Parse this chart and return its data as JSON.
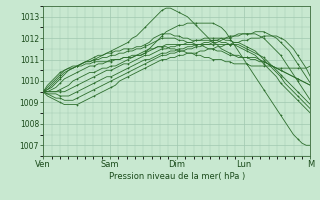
{
  "bg_color": "#c8e8d0",
  "grid_color": "#a0c8b0",
  "line_color": "#2d6e2d",
  "xlabel": "Pression niveau de la mer( hPa )",
  "ylim": [
    1006.5,
    1013.5
  ],
  "yticks": [
    1007,
    1008,
    1009,
    1010,
    1011,
    1012,
    1013
  ],
  "x_day_labels": [
    "Ven",
    "Sam",
    "Dim",
    "Lun",
    "M"
  ],
  "x_day_positions": [
    0,
    48,
    96,
    144,
    192
  ],
  "total_hours": 192,
  "series": [
    [
      1009.5,
      1009.8,
      1010.0,
      1010.2,
      1010.4,
      1010.5,
      1010.6,
      1010.6,
      1010.7,
      1010.7,
      1010.8,
      1010.8,
      1010.9,
      1010.9,
      1010.9,
      1010.9,
      1011.0,
      1011.0,
      1011.0,
      1011.1,
      1011.1,
      1011.1,
      1011.2,
      1011.2,
      1011.3,
      1011.5,
      1011.7,
      1011.9,
      1012.1,
      1012.3,
      1012.4,
      1012.5,
      1012.6,
      1012.6,
      1012.7,
      1012.7,
      1012.7,
      1012.7,
      1012.7,
      1012.7,
      1012.7,
      1012.6,
      1012.5,
      1012.3,
      1012.0,
      1011.7,
      1011.4,
      1011.1,
      1010.8,
      1010.5,
      1010.2,
      1009.9,
      1009.6,
      1009.3,
      1009.0,
      1008.7,
      1008.4,
      1008.1,
      1007.8,
      1007.5,
      1007.3,
      1007.1,
      1007.0,
      1007.0
    ],
    [
      1009.5,
      1009.7,
      1009.9,
      1010.1,
      1010.3,
      1010.5,
      1010.6,
      1010.7,
      1010.7,
      1010.8,
      1010.9,
      1010.9,
      1011.0,
      1011.1,
      1011.2,
      1011.3,
      1011.4,
      1011.5,
      1011.6,
      1011.7,
      1011.8,
      1012.0,
      1012.1,
      1012.3,
      1012.5,
      1012.7,
      1012.9,
      1013.1,
      1013.3,
      1013.4,
      1013.4,
      1013.3,
      1013.2,
      1013.1,
      1013.0,
      1012.8,
      1012.6,
      1012.4,
      1012.2,
      1012.0,
      1011.8,
      1011.7,
      1011.5,
      1011.4,
      1011.3,
      1011.2,
      1011.1,
      1011.1,
      1011.1,
      1011.0,
      1011.0,
      1010.9,
      1010.9,
      1010.8,
      1010.7,
      1010.6,
      1010.5,
      1010.4,
      1010.3,
      1010.2,
      1010.1,
      1010.0,
      1009.9,
      1009.8
    ],
    [
      1009.5,
      1009.6,
      1009.8,
      1010.0,
      1010.2,
      1010.4,
      1010.5,
      1010.6,
      1010.7,
      1010.8,
      1010.9,
      1011.0,
      1011.1,
      1011.2,
      1011.2,
      1011.3,
      1011.3,
      1011.4,
      1011.4,
      1011.5,
      1011.5,
      1011.5,
      1011.6,
      1011.6,
      1011.7,
      1011.8,
      1012.0,
      1012.1,
      1012.2,
      1012.2,
      1012.2,
      1012.1,
      1012.1,
      1012.0,
      1012.0,
      1011.9,
      1011.9,
      1011.9,
      1011.9,
      1011.9,
      1011.9,
      1011.9,
      1011.8,
      1011.8,
      1011.7,
      1011.7,
      1011.6,
      1011.5,
      1011.4,
      1011.3,
      1011.2,
      1011.0,
      1010.8,
      1010.6,
      1010.4,
      1010.2,
      1009.9,
      1009.7,
      1009.5,
      1009.3,
      1009.1,
      1008.9,
      1008.7,
      1008.5
    ],
    [
      1009.5,
      1009.6,
      1009.7,
      1009.9,
      1010.1,
      1010.3,
      1010.5,
      1010.6,
      1010.7,
      1010.8,
      1010.9,
      1010.9,
      1011.0,
      1011.0,
      1011.1,
      1011.1,
      1011.2,
      1011.2,
      1011.3,
      1011.3,
      1011.4,
      1011.4,
      1011.5,
      1011.5,
      1011.6,
      1011.7,
      1011.8,
      1011.9,
      1012.0,
      1012.0,
      1012.0,
      1012.0,
      1011.9,
      1011.9,
      1011.8,
      1011.8,
      1011.7,
      1011.7,
      1011.6,
      1011.5,
      1011.5,
      1011.4,
      1011.4,
      1011.3,
      1011.2,
      1011.2,
      1011.2,
      1011.1,
      1011.1,
      1011.1,
      1011.1,
      1011.0,
      1010.9,
      1010.8,
      1010.7,
      1010.6,
      1010.5,
      1010.4,
      1010.3,
      1010.2,
      1010.1,
      1010.0,
      1009.9,
      1009.8
    ],
    [
      1009.5,
      1009.5,
      1009.6,
      1009.7,
      1009.9,
      1010.1,
      1010.2,
      1010.3,
      1010.4,
      1010.5,
      1010.6,
      1010.7,
      1010.7,
      1010.8,
      1010.8,
      1010.9,
      1010.9,
      1011.0,
      1011.0,
      1011.1,
      1011.1,
      1011.2,
      1011.2,
      1011.3,
      1011.4,
      1011.5,
      1011.5,
      1011.6,
      1011.6,
      1011.6,
      1011.5,
      1011.5,
      1011.4,
      1011.4,
      1011.3,
      1011.3,
      1011.2,
      1011.2,
      1011.1,
      1011.1,
      1011.0,
      1011.0,
      1011.0,
      1010.9,
      1010.9,
      1010.8,
      1010.8,
      1010.8,
      1010.8,
      1010.7,
      1010.7,
      1010.7,
      1010.7,
      1010.7,
      1010.7,
      1010.6,
      1010.6,
      1010.6,
      1010.6,
      1010.6,
      1010.6,
      1010.6,
      1010.6,
      1010.7
    ],
    [
      1009.5,
      1009.5,
      1009.5,
      1009.5,
      1009.6,
      1009.7,
      1009.8,
      1010.0,
      1010.1,
      1010.2,
      1010.3,
      1010.4,
      1010.4,
      1010.5,
      1010.6,
      1010.6,
      1010.7,
      1010.7,
      1010.8,
      1010.9,
      1011.0,
      1011.1,
      1011.2,
      1011.2,
      1011.3,
      1011.4,
      1011.5,
      1011.6,
      1011.6,
      1011.7,
      1011.7,
      1011.7,
      1011.7,
      1011.7,
      1011.7,
      1011.7,
      1011.7,
      1011.7,
      1011.7,
      1011.7,
      1011.7,
      1011.7,
      1011.7,
      1011.7,
      1011.7,
      1011.7,
      1011.7,
      1011.6,
      1011.5,
      1011.4,
      1011.3,
      1011.2,
      1011.1,
      1010.9,
      1010.7,
      1010.5,
      1010.3,
      1010.1,
      1009.9,
      1009.7,
      1009.5,
      1009.3,
      1009.1,
      1008.9
    ],
    [
      1009.5,
      1009.5,
      1009.5,
      1009.5,
      1009.5,
      1009.5,
      1009.6,
      1009.7,
      1009.8,
      1009.9,
      1010.0,
      1010.1,
      1010.2,
      1010.3,
      1010.4,
      1010.5,
      1010.5,
      1010.6,
      1010.7,
      1010.8,
      1010.8,
      1010.9,
      1011.0,
      1011.1,
      1011.2,
      1011.2,
      1011.3,
      1011.4,
      1011.5,
      1011.5,
      1011.6,
      1011.6,
      1011.7,
      1011.7,
      1011.8,
      1011.8,
      1011.9,
      1011.9,
      1012.0,
      1012.0,
      1012.0,
      1012.0,
      1012.0,
      1011.9,
      1011.9,
      1011.8,
      1011.8,
      1011.7,
      1011.6,
      1011.5,
      1011.4,
      1011.2,
      1011.0,
      1010.8,
      1010.6,
      1010.4,
      1010.2,
      1009.9,
      1009.7,
      1009.5,
      1009.3,
      1009.1,
      1008.9,
      1008.7
    ],
    [
      1009.5,
      1009.4,
      1009.4,
      1009.4,
      1009.3,
      1009.3,
      1009.3,
      1009.4,
      1009.5,
      1009.6,
      1009.7,
      1009.8,
      1009.9,
      1010.0,
      1010.1,
      1010.2,
      1010.2,
      1010.3,
      1010.4,
      1010.5,
      1010.6,
      1010.7,
      1010.8,
      1010.9,
      1011.0,
      1011.0,
      1011.1,
      1011.2,
      1011.3,
      1011.3,
      1011.4,
      1011.4,
      1011.5,
      1011.5,
      1011.6,
      1011.6,
      1011.7,
      1011.7,
      1011.8,
      1011.8,
      1011.9,
      1011.9,
      1012.0,
      1012.0,
      1012.1,
      1012.1,
      1012.2,
      1012.2,
      1012.2,
      1012.2,
      1012.2,
      1012.1,
      1012.0,
      1011.8,
      1011.6,
      1011.4,
      1011.2,
      1010.9,
      1010.6,
      1010.3,
      1010.0,
      1009.7,
      1009.4,
      1009.1
    ],
    [
      1009.5,
      1009.4,
      1009.3,
      1009.2,
      1009.2,
      1009.1,
      1009.1,
      1009.1,
      1009.2,
      1009.3,
      1009.4,
      1009.5,
      1009.6,
      1009.7,
      1009.8,
      1009.9,
      1010.0,
      1010.1,
      1010.2,
      1010.3,
      1010.4,
      1010.5,
      1010.6,
      1010.7,
      1010.8,
      1010.9,
      1011.0,
      1011.1,
      1011.2,
      1011.2,
      1011.3,
      1011.3,
      1011.4,
      1011.4,
      1011.5,
      1011.5,
      1011.6,
      1011.6,
      1011.7,
      1011.7,
      1011.8,
      1011.8,
      1011.9,
      1012.0,
      1012.0,
      1012.1,
      1012.1,
      1012.2,
      1012.2,
      1012.2,
      1012.3,
      1012.3,
      1012.3,
      1012.2,
      1012.1,
      1012.0,
      1011.8,
      1011.6,
      1011.4,
      1011.1,
      1010.8,
      1010.5,
      1010.2,
      1009.9
    ],
    [
      1009.5,
      1009.3,
      1009.2,
      1009.1,
      1009.0,
      1008.9,
      1008.9,
      1008.9,
      1008.9,
      1009.0,
      1009.1,
      1009.2,
      1009.3,
      1009.4,
      1009.5,
      1009.6,
      1009.7,
      1009.8,
      1010.0,
      1010.1,
      1010.2,
      1010.3,
      1010.4,
      1010.5,
      1010.6,
      1010.7,
      1010.8,
      1010.9,
      1011.0,
      1011.0,
      1011.1,
      1011.1,
      1011.2,
      1011.2,
      1011.3,
      1011.3,
      1011.3,
      1011.4,
      1011.4,
      1011.5,
      1011.5,
      1011.6,
      1011.6,
      1011.7,
      1011.7,
      1011.8,
      1011.8,
      1011.9,
      1011.9,
      1012.0,
      1012.0,
      1012.0,
      1012.1,
      1012.1,
      1012.1,
      1012.1,
      1012.0,
      1011.9,
      1011.7,
      1011.5,
      1011.2,
      1010.9,
      1010.6,
      1010.2
    ]
  ]
}
